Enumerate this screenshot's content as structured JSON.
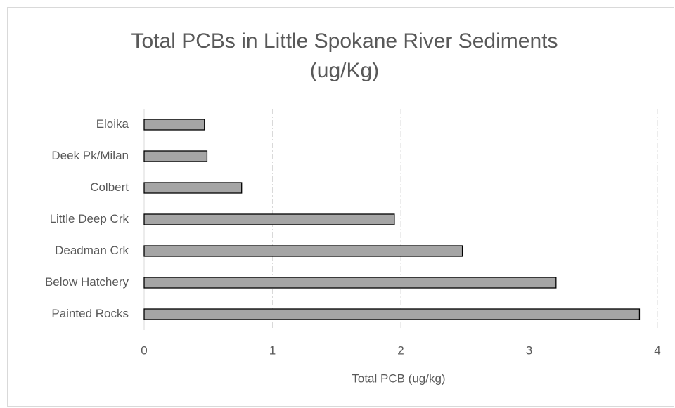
{
  "chart_data": {
    "type": "bar",
    "orientation": "horizontal",
    "title": "Total PCBs in Little Spokane River Sediments (ug/Kg)",
    "x_label": "Total PCB (ug/kg)",
    "categories": [
      "Eloika",
      "Deek Pk/Milan",
      "Colbert",
      "Little Deep Crk",
      "Deadman Crk",
      "Below Hatchery",
      "Painted Rocks"
    ],
    "values": [
      0.47,
      0.49,
      0.76,
      1.95,
      2.48,
      3.21,
      3.86
    ],
    "color": "#a5a5a5",
    "xlim": [
      0,
      4
    ],
    "xticks": [
      0,
      1,
      2,
      3,
      4
    ],
    "grid": true
  }
}
